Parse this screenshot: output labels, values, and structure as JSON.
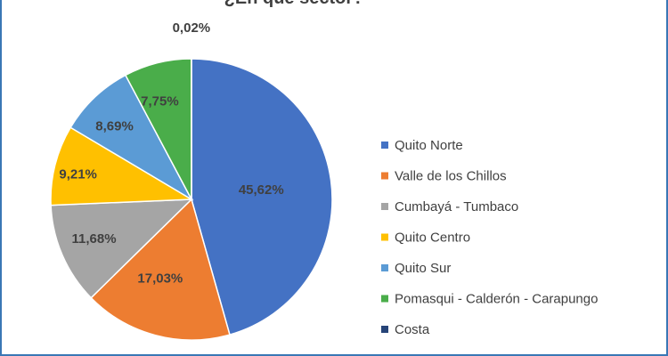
{
  "chart_data": {
    "type": "pie",
    "title": "¿En qué sector?",
    "categories": [
      "Quito Norte",
      "Valle de los Chillos",
      "Cumbayá - Tumbaco",
      "Quito Centro",
      "Quito Sur",
      "Pomasqui - Calderón - Carapungo",
      "Costa"
    ],
    "values": [
      45.62,
      17.03,
      11.68,
      9.21,
      8.69,
      7.75,
      0.02
    ],
    "labels": [
      "45,62%",
      "17,03%",
      "11,68%",
      "9,21%",
      "8,69%",
      "7,75%",
      "0,02%"
    ],
    "colors": [
      "#4472c4",
      "#ed7d31",
      "#a5a5a5",
      "#ffc000",
      "#5b9bd5",
      "#4aad4a",
      "#264478"
    ],
    "legend_position": "right",
    "start_angle": "top, clockwise"
  }
}
